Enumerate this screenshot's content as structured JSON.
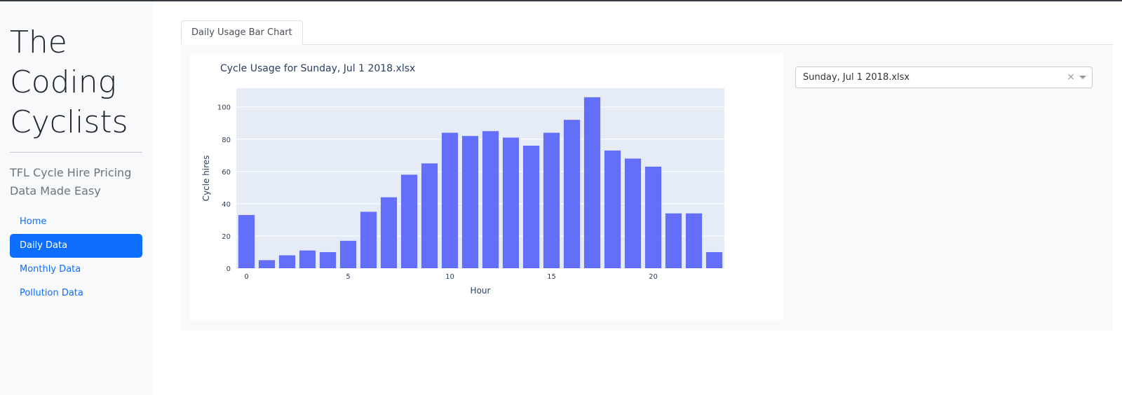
{
  "sidebar": {
    "brand_lines": [
      "The",
      "Coding",
      "Cyclists"
    ],
    "lead_lines": [
      "TFL Cycle Hire Pricing",
      "Data Made Easy"
    ],
    "nav": [
      {
        "label": "Home",
        "active": false
      },
      {
        "label": "Daily Data",
        "active": true
      },
      {
        "label": "Monthly Data",
        "active": false
      },
      {
        "label": "Pollution Data",
        "active": false
      }
    ]
  },
  "tabs": [
    {
      "label": "Daily Usage Bar Chart",
      "active": true
    }
  ],
  "dropdown": {
    "value": "Sunday, Jul 1 2018.xlsx",
    "clear_glyph": "×"
  },
  "colors": {
    "accent": "#0d6efd",
    "bar": "#636efa",
    "plot_bg": "#e5ecf6"
  },
  "chart_data": {
    "type": "bar",
    "title": "Cycle Usage for Sunday, Jul 1 2018.xlsx",
    "xlabel": "Hour",
    "ylabel": "Cycle hires",
    "x": [
      0,
      1,
      2,
      3,
      4,
      5,
      6,
      7,
      8,
      9,
      10,
      11,
      12,
      13,
      14,
      15,
      16,
      17,
      18,
      19,
      20,
      21,
      22,
      23
    ],
    "values": [
      33,
      5,
      8,
      11,
      10,
      17,
      35,
      44,
      58,
      65,
      84,
      82,
      85,
      81,
      76,
      84,
      92,
      106,
      73,
      68,
      63,
      34,
      34,
      10
    ],
    "xticks": [
      0,
      5,
      10,
      15,
      20
    ],
    "yticks": [
      0,
      20,
      40,
      60,
      80,
      100
    ],
    "xlim": [
      -0.5,
      23.5
    ],
    "ylim": [
      0,
      111.6
    ],
    "grid": true
  }
}
